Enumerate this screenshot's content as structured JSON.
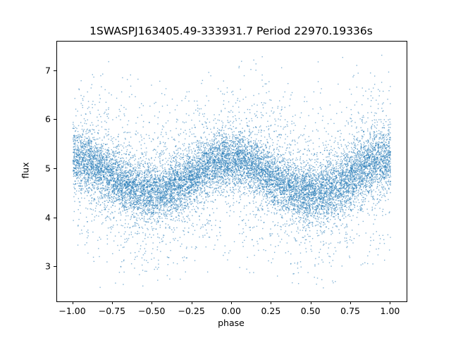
{
  "chart_data": {
    "type": "scatter",
    "title": "1SWASPJ163405.49-333931.7 Period 22970.19336s",
    "xlabel": "phase",
    "ylabel": "flux",
    "xlim": [
      -1.1,
      1.1
    ],
    "ylim": [
      2.3,
      7.6
    ],
    "xticks": [
      -1.0,
      -0.75,
      -0.5,
      -0.25,
      0.0,
      0.25,
      0.5,
      0.75,
      1.0
    ],
    "xtick_labels": [
      "−1.00",
      "−0.75",
      "−0.50",
      "−0.25",
      "0.00",
      "0.25",
      "0.50",
      "0.75",
      "1.00"
    ],
    "yticks": [
      3,
      4,
      5,
      6,
      7
    ],
    "ytick_labels": [
      "3",
      "4",
      "5",
      "6",
      "7"
    ],
    "grid": false,
    "legend": null,
    "marker_color": "#1f77b4",
    "marker_alpha": 0.55,
    "marker_size_px": 1.4,
    "n_points": 14000,
    "model": {
      "description": "phase-folded light curve: flux = baseline + amplitude*cos(2*pi*phase) + noise",
      "baseline": 4.85,
      "amplitude": 0.35,
      "phase_of_maximum": 0.0,
      "x_range": [
        -1.0,
        1.0
      ],
      "noise_core_sigma": 0.28,
      "noise_tail_sigma": 0.85,
      "tail_fraction": 0.25,
      "flux_min_observed": 2.55,
      "flux_max_observed": 7.35
    }
  }
}
